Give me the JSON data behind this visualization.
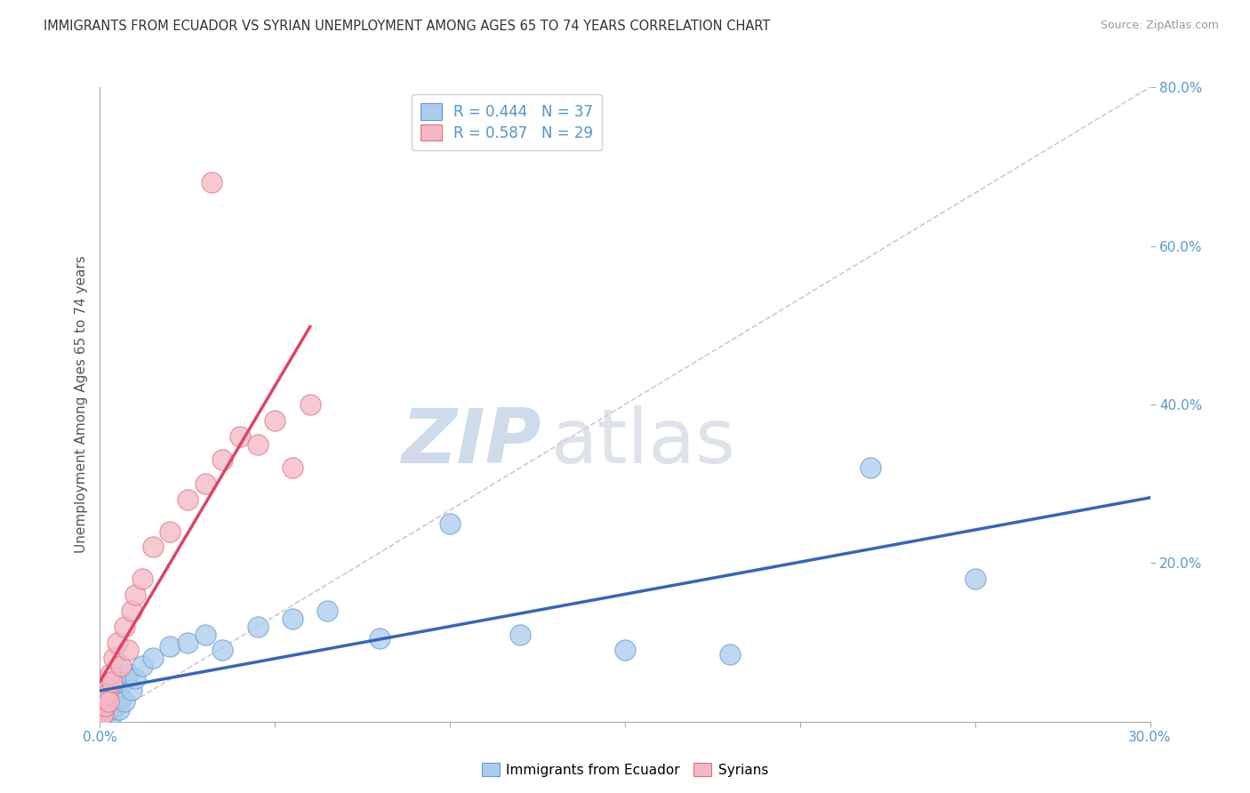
{
  "title": "IMMIGRANTS FROM ECUADOR VS SYRIAN UNEMPLOYMENT AMONG AGES 65 TO 74 YEARS CORRELATION CHART",
  "source": "Source: ZipAtlas.com",
  "ylabel": "Unemployment Among Ages 65 to 74 years",
  "xlim": [
    0.0,
    30.0
  ],
  "ylim": [
    0.0,
    80.0
  ],
  "ecuador_color": "#aaccee",
  "ecuador_edge_color": "#6699cc",
  "syrian_color": "#f4b8c4",
  "syrian_edge_color": "#e07080",
  "ecuador_line_color": "#3366bb",
  "syrian_line_color": "#dd4466",
  "diag_color": "#cccccc",
  "ecuador_R": 0.444,
  "ecuador_N": 37,
  "syrian_R": 0.587,
  "syrian_N": 29,
  "watermark_zip": "ZIP",
  "watermark_atlas": "atlas",
  "grid_color": "#dddddd",
  "tick_color": "#5599cc",
  "ecuador_x": [
    0.05,
    0.08,
    0.1,
    0.12,
    0.15,
    0.18,
    0.2,
    0.25,
    0.28,
    0.3,
    0.35,
    0.4,
    0.45,
    0.5,
    0.55,
    0.6,
    0.65,
    0.7,
    0.8,
    0.9,
    1.0,
    1.2,
    1.5,
    2.0,
    2.5,
    3.0,
    3.5,
    4.5,
    5.5,
    6.5,
    8.0,
    10.0,
    12.0,
    15.0,
    18.0,
    22.0,
    25.0
  ],
  "ecuador_y": [
    1.0,
    2.0,
    1.5,
    0.5,
    3.0,
    1.0,
    2.5,
    1.5,
    4.0,
    2.0,
    1.0,
    3.5,
    2.0,
    4.5,
    1.5,
    3.0,
    5.0,
    2.5,
    6.0,
    4.0,
    5.5,
    7.0,
    8.0,
    9.5,
    10.0,
    11.0,
    9.0,
    12.0,
    13.0,
    14.0,
    10.5,
    25.0,
    11.0,
    9.0,
    8.5,
    32.0,
    18.0
  ],
  "syrian_x": [
    0.05,
    0.08,
    0.1,
    0.12,
    0.15,
    0.18,
    0.2,
    0.25,
    0.3,
    0.35,
    0.4,
    0.5,
    0.6,
    0.7,
    0.8,
    0.9,
    1.0,
    1.2,
    1.5,
    2.0,
    2.5,
    3.0,
    3.5,
    4.0,
    4.5,
    5.0,
    5.5,
    6.0,
    3.2
  ],
  "syrian_y": [
    0.5,
    1.5,
    1.0,
    3.0,
    2.0,
    4.5,
    3.5,
    2.5,
    6.0,
    5.0,
    8.0,
    10.0,
    7.0,
    12.0,
    9.0,
    14.0,
    16.0,
    18.0,
    22.0,
    24.0,
    28.0,
    30.0,
    33.0,
    36.0,
    35.0,
    38.0,
    32.0,
    40.0,
    68.0
  ]
}
